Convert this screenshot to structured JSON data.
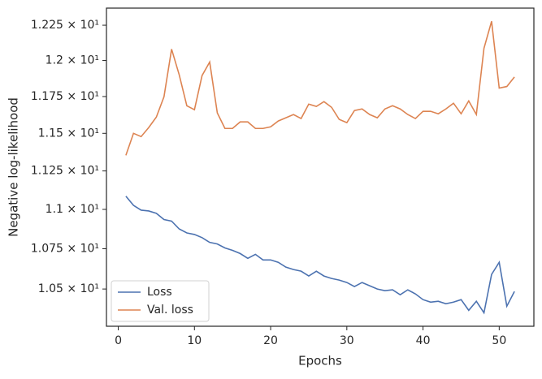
{
  "chart_data": {
    "type": "line",
    "xlabel": "Epochs",
    "ylabel": "Negative log-likelihood",
    "x": [
      1,
      2,
      3,
      4,
      5,
      6,
      7,
      8,
      9,
      10,
      11,
      12,
      13,
      14,
      15,
      16,
      17,
      18,
      19,
      20,
      21,
      22,
      23,
      24,
      25,
      26,
      27,
      28,
      29,
      30,
      31,
      32,
      33,
      34,
      35,
      36,
      37,
      38,
      39,
      40,
      41,
      42,
      43,
      44,
      45,
      46,
      47,
      48,
      49,
      50,
      51,
      52
    ],
    "series": [
      {
        "name": "Loss",
        "color": "#4c72b0",
        "values": [
          11.085,
          11.026,
          10.995,
          10.99,
          10.975,
          10.935,
          10.925,
          10.875,
          10.85,
          10.84,
          10.82,
          10.79,
          10.78,
          10.755,
          10.74,
          10.72,
          10.69,
          10.715,
          10.68,
          10.68,
          10.665,
          10.635,
          10.62,
          10.61,
          10.58,
          10.61,
          10.58,
          10.565,
          10.555,
          10.54,
          10.515,
          10.54,
          10.52,
          10.5,
          10.49,
          10.495,
          10.465,
          10.495,
          10.47,
          10.435,
          10.42,
          10.425,
          10.41,
          10.42,
          10.435,
          10.37,
          10.425,
          10.355,
          10.59,
          10.665,
          10.395,
          10.485
        ]
      },
      {
        "name": "Val. loss",
        "color": "#dd8452",
        "values": [
          11.353,
          11.5,
          11.478,
          11.539,
          11.61,
          11.748,
          12.08,
          11.9,
          11.687,
          11.66,
          11.895,
          11.989,
          11.638,
          11.533,
          11.533,
          11.577,
          11.577,
          11.533,
          11.533,
          11.544,
          11.583,
          11.605,
          11.627,
          11.6,
          11.698,
          11.682,
          11.715,
          11.676,
          11.594,
          11.572,
          11.654,
          11.665,
          11.627,
          11.605,
          11.665,
          11.687,
          11.665,
          11.627,
          11.6,
          11.649,
          11.649,
          11.632,
          11.665,
          11.704,
          11.632,
          11.72,
          11.627,
          12.086,
          12.278,
          11.808,
          11.819,
          11.885
        ]
      }
    ],
    "xlim": [
      -1.55,
      54.55
    ],
    "xticks": [
      0,
      10,
      20,
      30,
      40,
      50
    ],
    "ylim": [
      10.274,
      12.373
    ],
    "yscale": "log",
    "yticks": [
      {
        "value": 10.5,
        "label": "1.05 × 10¹"
      },
      {
        "value": 10.75,
        "label": "1.075 × 10¹"
      },
      {
        "value": 11,
        "label": "1.1 × 10¹"
      },
      {
        "value": 11.25,
        "label": "1.125 × 10¹"
      },
      {
        "value": 11.5,
        "label": "1.15 × 10¹"
      },
      {
        "value": 11.75,
        "label": "1.175 × 10¹"
      },
      {
        "value": 12,
        "label": "1.2 × 10¹"
      },
      {
        "value": 12.25,
        "label": "1.225 × 10¹"
      }
    ],
    "legend": "lower left",
    "grid": false
  }
}
